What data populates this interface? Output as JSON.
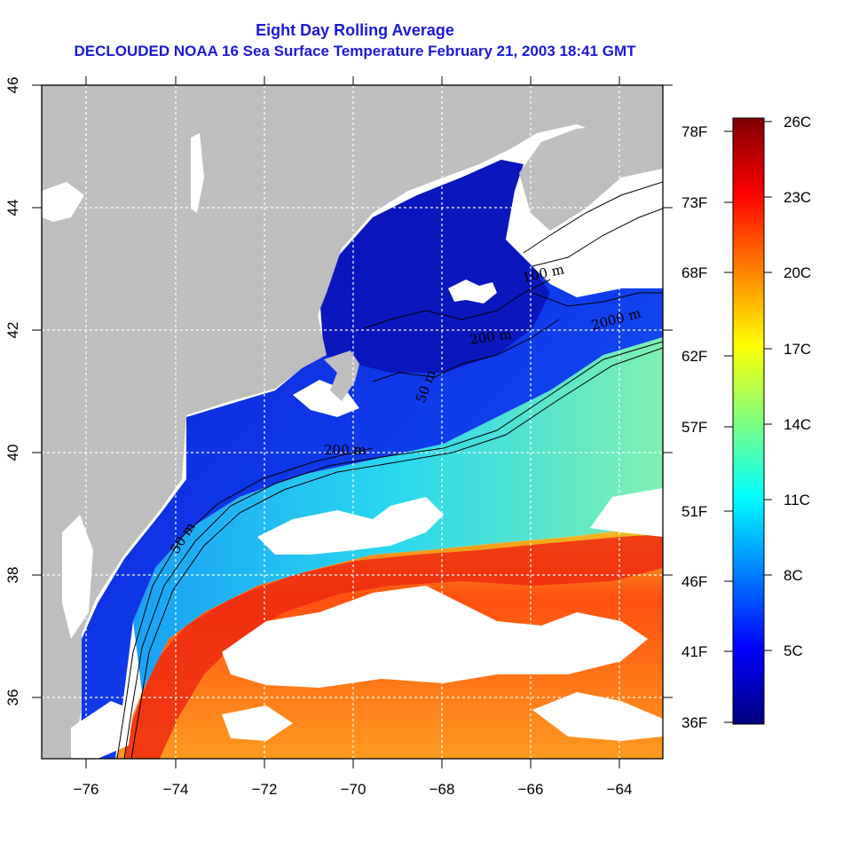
{
  "header": {
    "title": "Eight Day Rolling Average",
    "subtitle": "DECLOUDED NOAA 16 Sea Surface Temperature February 21, 2003 18:41 GMT"
  },
  "map": {
    "x_ticks": [
      "−76",
      "−74",
      "−72",
      "−70",
      "−68",
      "−66",
      "−64"
    ],
    "y_ticks": [
      "36",
      "38",
      "40",
      "42",
      "44",
      "46"
    ],
    "contour_labels": [
      "50 m",
      "200 m",
      "50 m",
      "200 m",
      "2000 m",
      "100 m",
      "200 m"
    ]
  },
  "colorbar": {
    "celsius": [
      "26C",
      "23C",
      "20C",
      "17C",
      "14C",
      "11C",
      "8C",
      "5C"
    ],
    "fahrenheit": [
      "78F",
      "73F",
      "68F",
      "62F",
      "57F",
      "51F",
      "46F",
      "41F",
      "36F"
    ],
    "colors": [
      "#00007f",
      "#0000ff",
      "#0080ff",
      "#00ffff",
      "#7fff7f",
      "#ffff00",
      "#ff8000",
      "#ff0000",
      "#7f0000"
    ]
  }
}
